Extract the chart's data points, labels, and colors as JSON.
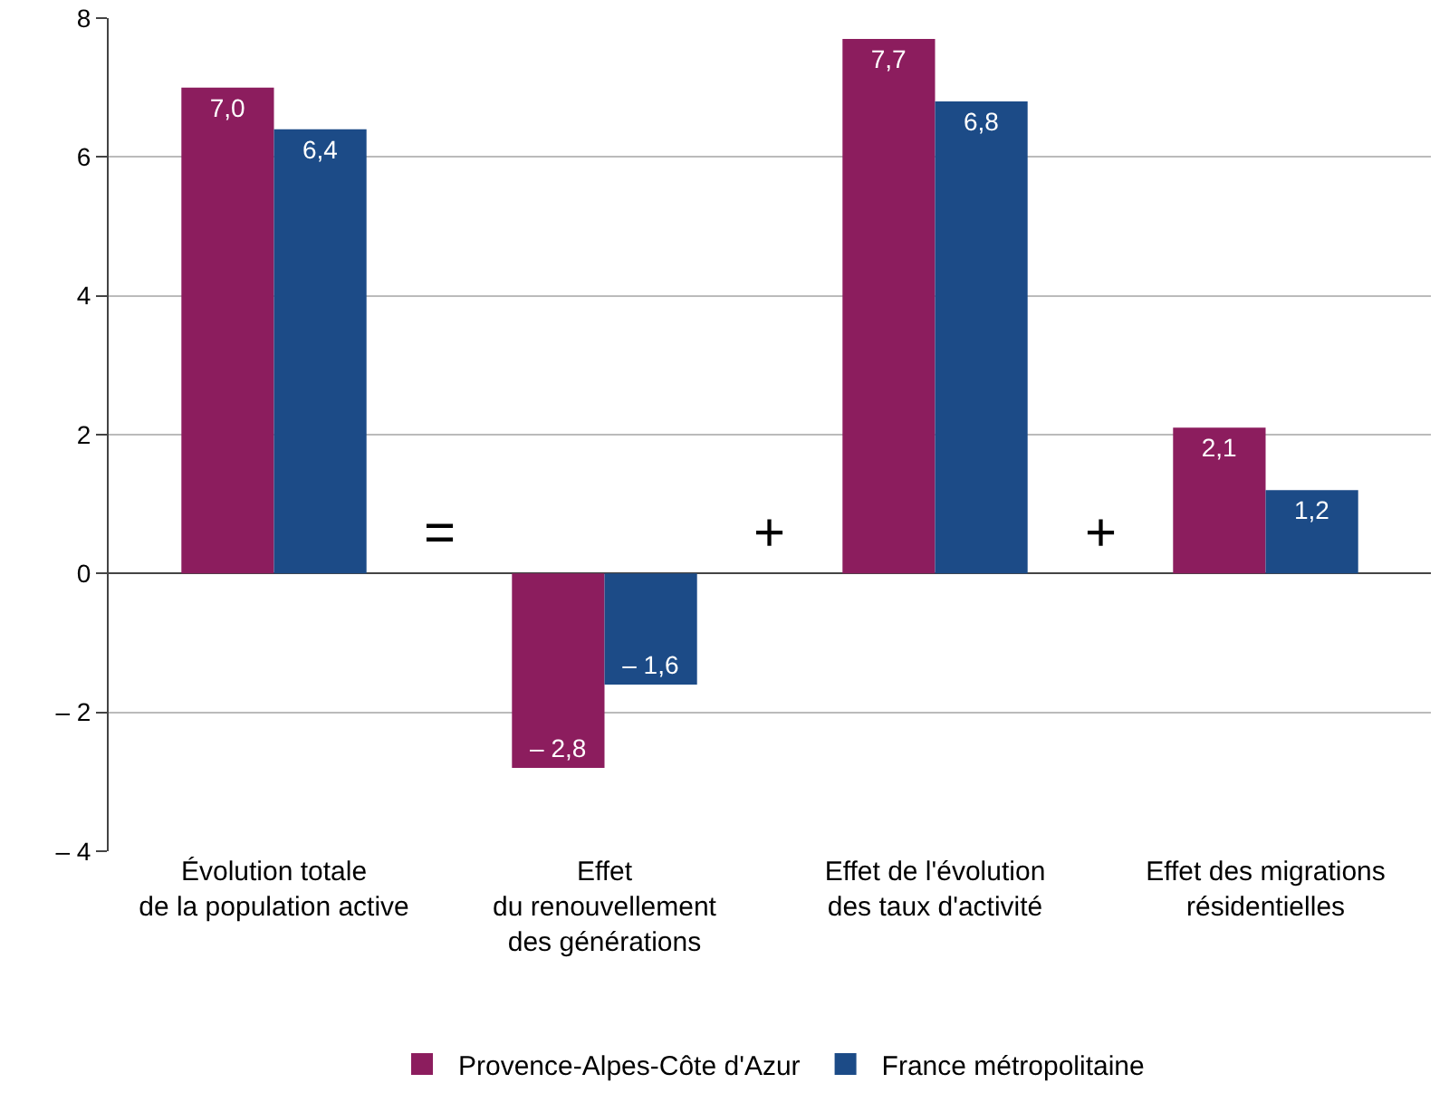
{
  "chart_data": {
    "type": "bar",
    "categories": [
      "Évolution totale\nde la population active",
      "Effet\ndu renouvellement\ndes générations",
      "Effet de l'évolution\ndes taux d'activité",
      "Effet des migrations\nrésidentielles"
    ],
    "series": [
      {
        "name": "Provence-Alpes-Côte d'Azur",
        "color": "#8c1d5e",
        "values": [
          7.0,
          -2.8,
          7.7,
          2.1
        ],
        "value_labels": [
          "7,0",
          "– 2,8",
          "7,7",
          "2,1"
        ]
      },
      {
        "name": "France métropolitaine",
        "color": "#1c4b87",
        "values": [
          6.4,
          -1.6,
          6.8,
          1.2
        ],
        "value_labels": [
          "6,4",
          "– 1,6",
          "6,8",
          "1,2"
        ]
      }
    ],
    "ylim": [
      -4,
      8
    ],
    "yticks": [
      {
        "value": -4,
        "label": "– 4"
      },
      {
        "value": -2,
        "label": "– 2"
      },
      0,
      2,
      4,
      6,
      8
    ],
    "grid": "y",
    "legend": "bottom",
    "annotations": [
      "=",
      "+",
      "+"
    ]
  }
}
